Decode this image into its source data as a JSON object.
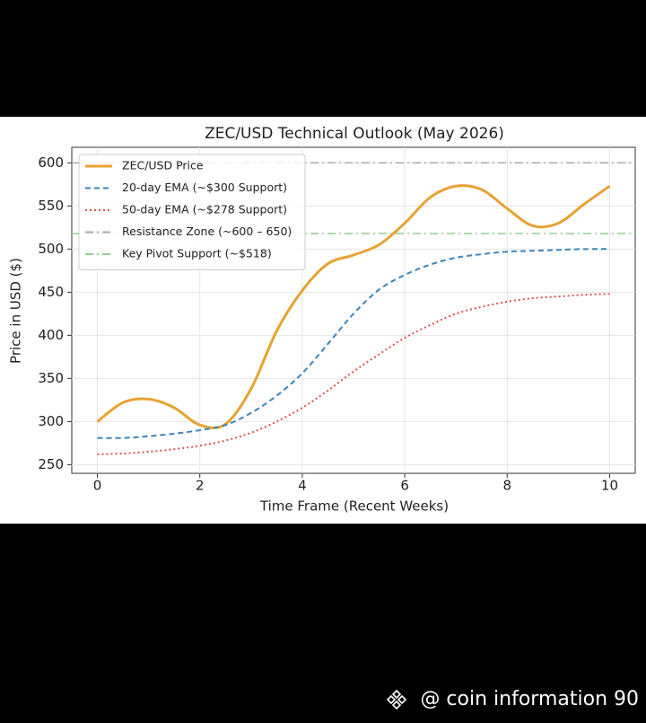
{
  "chart_data": {
    "type": "line",
    "title": "ZEC/USD Technical Outlook (May 2026)",
    "x_label": "Time Frame (Recent Weeks)",
    "y_label": "Price in USD ($)",
    "x": [
      0,
      0.5,
      1,
      1.5,
      2,
      2.5,
      3,
      3.5,
      4,
      4.5,
      5,
      5.5,
      6,
      6.5,
      7,
      7.5,
      8,
      8.5,
      9,
      9.5,
      10
    ],
    "series": [
      {
        "name": "ZEC/USD Price",
        "color": "#e8a233",
        "dash": "solid",
        "values": [
          300,
          322,
          326,
          316,
          296,
          297,
          338,
          405,
          452,
          483,
          493,
          505,
          530,
          560,
          573,
          569,
          547,
          527,
          530,
          552,
          573
        ]
      },
      {
        "name": "20-day EMA (~$300 Support)",
        "color": "#3d85b8",
        "dash": "dashed",
        "values": [
          281,
          281,
          283,
          286,
          290,
          296,
          310,
          330,
          356,
          390,
          425,
          453,
          470,
          482,
          490,
          494,
          497,
          498,
          499,
          500,
          500
        ]
      },
      {
        "name": "50-day EMA (~$278 Support)",
        "color": "#d9534f",
        "dash": "dotted",
        "values": [
          262,
          263,
          265,
          268,
          272,
          278,
          287,
          300,
          316,
          336,
          358,
          378,
          397,
          412,
          425,
          433,
          439,
          443,
          445,
          447,
          448
        ]
      }
    ],
    "hlines": [
      {
        "name": "Resistance Zone (~600 – 650)",
        "color": "#aaaaaa",
        "dash": "dashdot",
        "value": 600
      },
      {
        "name": "Key Pivot Support (~$518)",
        "color": "#8fd08f",
        "dash": "dashdot",
        "value": 518
      }
    ],
    "xlim": [
      -0.5,
      10.5
    ],
    "ylim": [
      240,
      618
    ],
    "xticks": [
      0,
      2,
      4,
      6,
      8,
      10
    ],
    "yticks": [
      250,
      300,
      350,
      400,
      450,
      500,
      550,
      600
    ],
    "grid": true,
    "legend": "upper left"
  },
  "watermark": "@ coin information 90"
}
